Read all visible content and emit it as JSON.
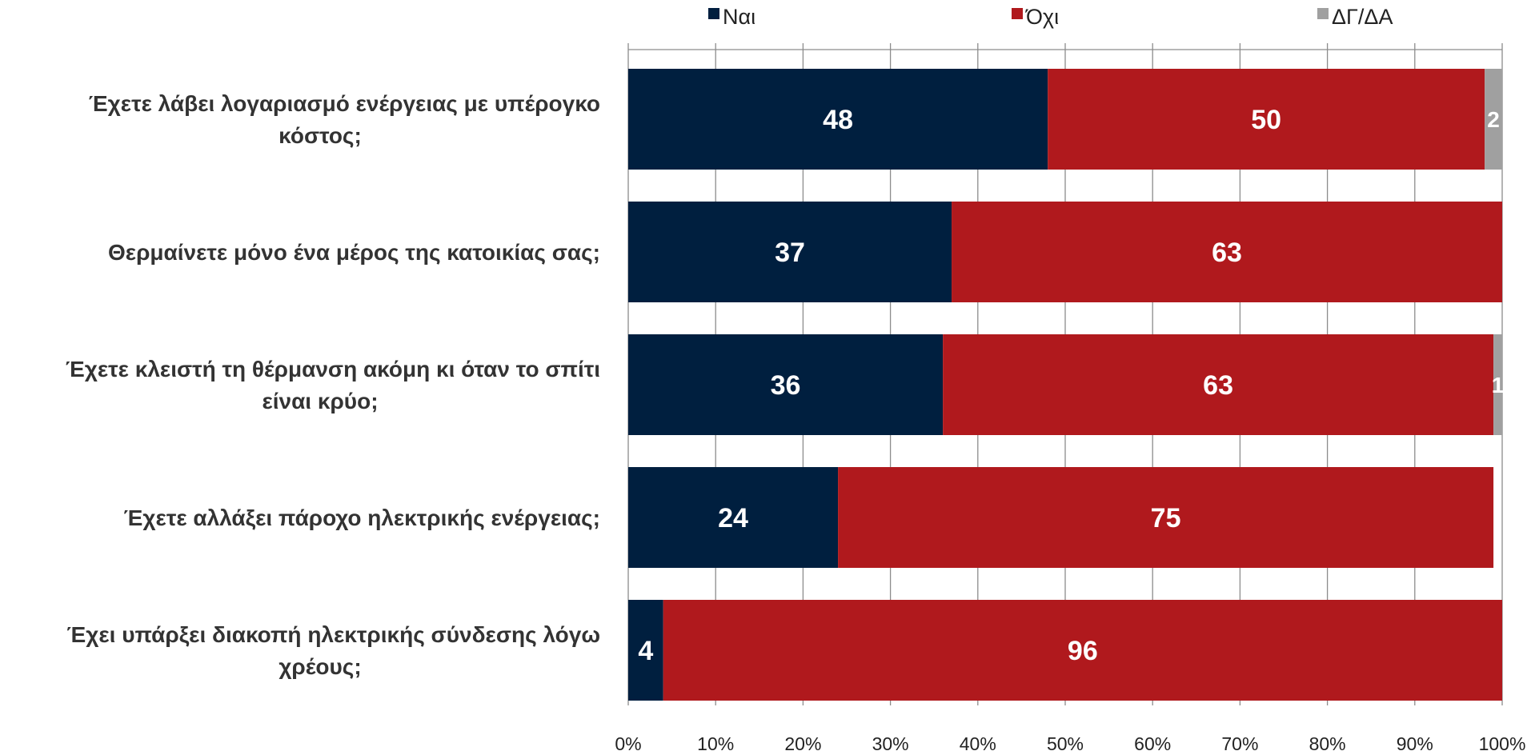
{
  "chart_data": {
    "type": "bar",
    "orientation": "horizontal",
    "stacked": true,
    "categories": [
      [
        "Έχετε λάβει λογαριασμό ενέργειας με υπέρογκο",
        "κόστος;"
      ],
      [
        "Θερμαίνετε μόνο ένα μέρος της κατοικίας σας;"
      ],
      [
        "Έχετε κλειστή τη θέρμανση ακόμη κι όταν το σπίτι",
        "είναι κρύο;"
      ],
      [
        "Έχετε αλλάξει πάροχο ηλεκτρικής ενέργειας;"
      ],
      [
        "Έχει υπάρξει διακοπή ηλεκτρικής σύνδεσης λόγω",
        "χρέους;"
      ]
    ],
    "series": [
      {
        "name": "Ναι",
        "color": "#001f3f",
        "values": [
          48,
          37,
          36,
          24,
          4
        ]
      },
      {
        "name": "Όχι",
        "color": "#b0191d",
        "values": [
          50,
          63,
          63,
          75,
          96
        ]
      },
      {
        "name": "ΔΓ/ΔΑ",
        "color": "#a0a0a0",
        "values": [
          2,
          0,
          1,
          0,
          0
        ]
      }
    ],
    "xlim": [
      0,
      100
    ],
    "xticks": [
      "0%",
      "10%",
      "20%",
      "30%",
      "40%",
      "50%",
      "60%",
      "70%",
      "80%",
      "90%",
      "100%"
    ],
    "grid": true,
    "legend_position": "top"
  }
}
